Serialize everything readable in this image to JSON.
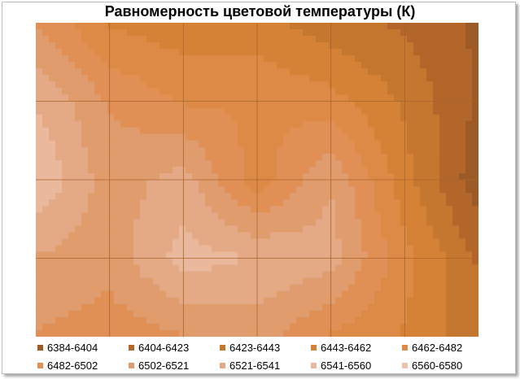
{
  "chart_data": {
    "type": "heatmap",
    "subtype": "contour",
    "title": "Равномерность цветовой температуры (К)",
    "grid": true,
    "legend_position": "bottom",
    "bands": [
      {
        "label": "6384-6404",
        "color": "#9c5a26"
      },
      {
        "label": "6404-6423",
        "color": "#b2662a"
      },
      {
        "label": "6423-6443",
        "color": "#c5762f"
      },
      {
        "label": "6443-6462",
        "color": "#d58236"
      },
      {
        "label": "6462-6482",
        "color": "#dc8a46"
      },
      {
        "label": "6482-6502",
        "color": "#e09055"
      },
      {
        "label": "6502-6521",
        "color": "#e19c6d"
      },
      {
        "label": "6521-6541",
        "color": "#e4a985"
      },
      {
        "label": "6541-6560",
        "color": "#e9b89d"
      },
      {
        "label": "6560-6580",
        "color": "#ecc4ae"
      }
    ],
    "rows": 5,
    "cols": 7,
    "values": [
      [
        6500,
        6460,
        6450,
        6450,
        6430,
        6420,
        6400
      ],
      [
        6540,
        6500,
        6480,
        6480,
        6470,
        6440,
        6400
      ],
      [
        6560,
        6510,
        6530,
        6470,
        6520,
        6450,
        6390
      ],
      [
        6520,
        6510,
        6550,
        6540,
        6530,
        6470,
        6420
      ],
      [
        6500,
        6490,
        6500,
        6510,
        6480,
        6460,
        6430
      ]
    ]
  }
}
